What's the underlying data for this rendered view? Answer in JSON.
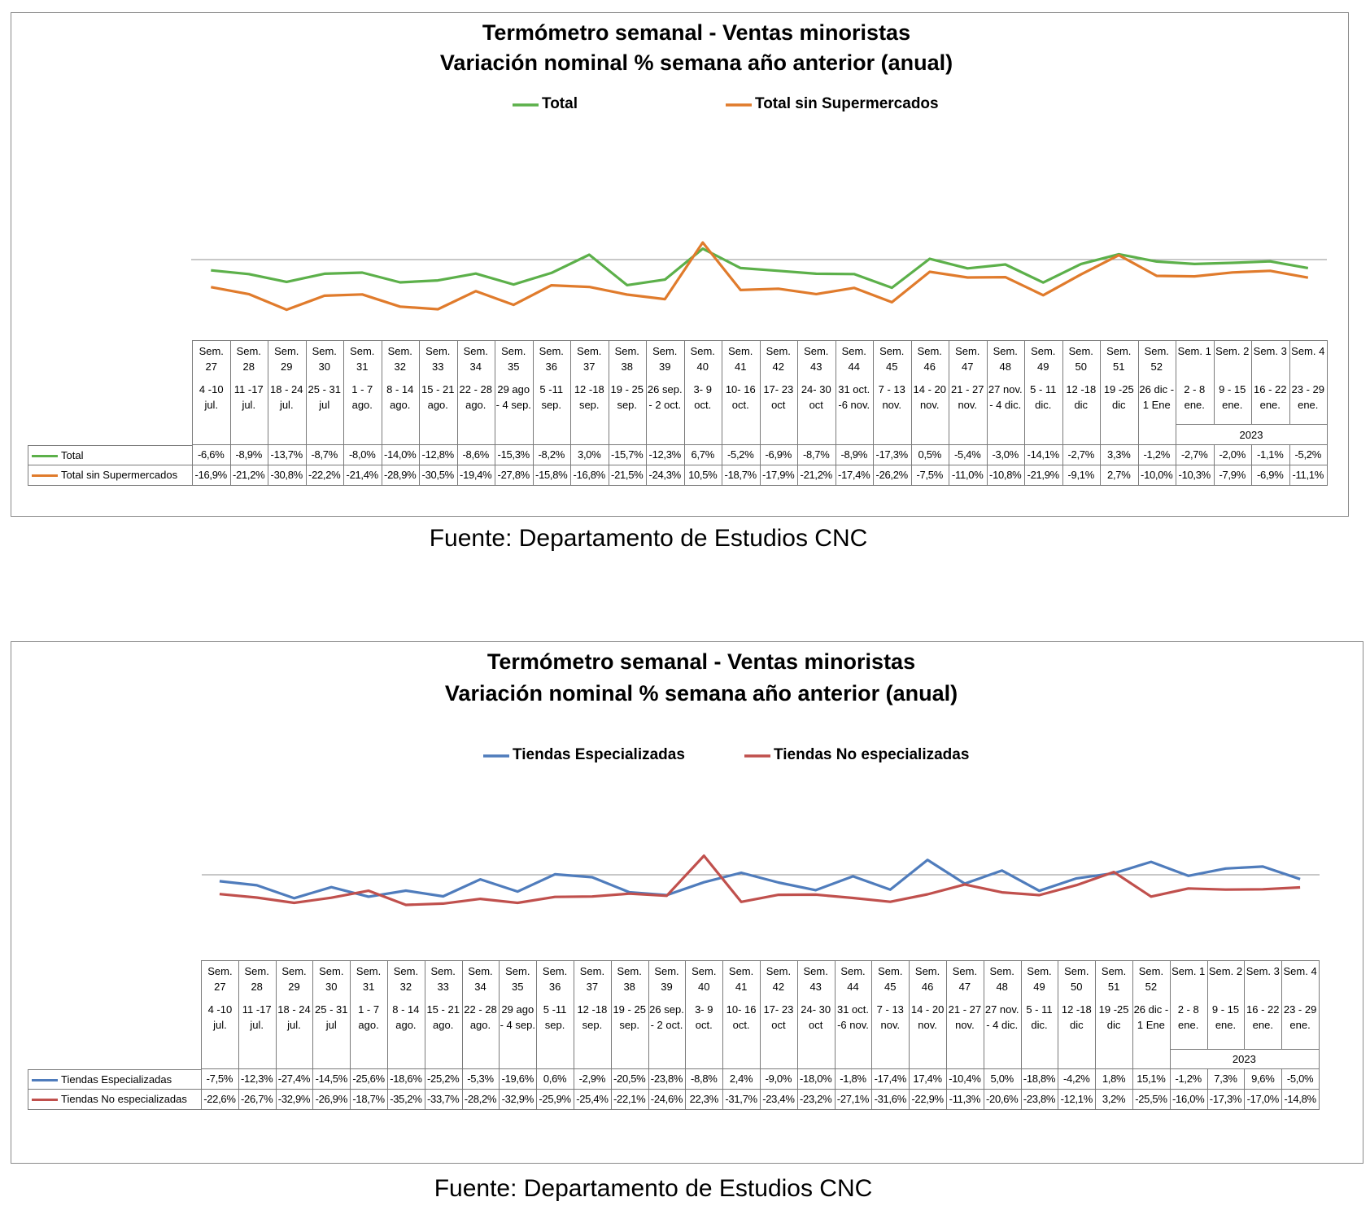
{
  "chart_data": [
    {
      "type": "line",
      "title": "Termómetro semanal - Ventas minoristas",
      "subtitle": "Variación nominal % semana año anterior (anual)",
      "categories": [
        "Sem. 27",
        "Sem. 28",
        "Sem. 29",
        "Sem. 30",
        "Sem. 31",
        "Sem. 32",
        "Sem. 33",
        "Sem. 34",
        "Sem. 35",
        "Sem. 36",
        "Sem. 37",
        "Sem. 38",
        "Sem. 39",
        "Sem. 40",
        "Sem. 41",
        "Sem. 42",
        "Sem. 43",
        "Sem. 44",
        "Sem. 45",
        "Sem. 46",
        "Sem. 47",
        "Sem. 48",
        "Sem. 49",
        "Sem. 50",
        "Sem. 51",
        "Sem. 52",
        "Sem. 1",
        "Sem. 2",
        "Sem. 3",
        "Sem. 4"
      ],
      "periods": [
        "4 -10 jul.",
        "11 -17 jul.",
        "18 - 24 jul.",
        "25 - 31 jul",
        "1 - 7 ago.",
        "8 - 14 ago.",
        "15 - 21 ago.",
        "22 - 28 ago.",
        "29 ago - 4 sep.",
        "5 -11 sep.",
        "12 -18 sep.",
        "19 - 25 sep.",
        "26 sep. - 2 oct.",
        "3- 9 oct.",
        "10- 16 oct.",
        "17- 23 oct",
        "24- 30 oct",
        "31 oct. -6 nov.",
        "7 - 13 nov.",
        "14 - 20 nov.",
        "21 - 27 nov.",
        "27 nov. - 4 dic.",
        "5 - 11 dic.",
        "12 -18 dic",
        "19 -25 dic",
        "26 dic - 1 Ene",
        "2 - 8 ene.",
        "9 - 15 ene.",
        "16 - 22 ene.",
        "23 - 29 ene."
      ],
      "year": "2023",
      "ylim": [
        -40,
        40
      ],
      "series": [
        {
          "name": "Total",
          "color": "#5cb04a",
          "values": [
            -6.6,
            -8.9,
            -13.7,
            -8.7,
            -8.0,
            -14.0,
            -12.8,
            -8.6,
            -15.3,
            -8.2,
            3.0,
            -15.7,
            -12.3,
            6.7,
            -5.2,
            -6.9,
            -8.7,
            -8.9,
            -17.3,
            0.5,
            -5.4,
            -3.0,
            -14.1,
            -2.7,
            3.3,
            -1.2,
            -2.7,
            -2.0,
            -1.1,
            -5.2
          ],
          "value_labels": [
            "-6,6%",
            "-8,9%",
            "-13,7%",
            "-8,7%",
            "-8,0%",
            "-14,0%",
            "-12,8%",
            "-8,6%",
            "-15,3%",
            "-8,2%",
            "3,0%",
            "-15,7%",
            "-12,3%",
            "6,7%",
            "-5,2%",
            "-6,9%",
            "-8,7%",
            "-8,9%",
            "-17,3%",
            "0,5%",
            "-5,4%",
            "-3,0%",
            "-14,1%",
            "-2,7%",
            "3,3%",
            "-1,2%",
            "-2,7%",
            "-2,0%",
            "-1,1%",
            "-5,2%"
          ]
        },
        {
          "name": "Total sin Supermercados",
          "color": "#e07b2c",
          "values": [
            -16.9,
            -21.2,
            -30.8,
            -22.2,
            -21.4,
            -28.9,
            -30.5,
            -19.4,
            -27.8,
            -15.8,
            -16.8,
            -21.5,
            -24.3,
            10.5,
            -18.7,
            -17.9,
            -21.2,
            -17.4,
            -26.2,
            -7.5,
            -11.0,
            -10.8,
            -21.9,
            -9.1,
            2.7,
            -10.0,
            -10.3,
            -7.9,
            -6.9,
            -11.1
          ],
          "value_labels": [
            "-16,9%",
            "-21,2%",
            "-30,8%",
            "-22,2%",
            "-21,4%",
            "-28,9%",
            "-30,5%",
            "-19,4%",
            "-27,8%",
            "-15,8%",
            "-16,8%",
            "-21,5%",
            "-24,3%",
            "10,5%",
            "-18,7%",
            "-17,9%",
            "-21,2%",
            "-17,4%",
            "-26,2%",
            "-7,5%",
            "-11,0%",
            "-10,8%",
            "-21,9%",
            "-9,1%",
            "2,7%",
            "-10,0%",
            "-10,3%",
            "-7,9%",
            "-6,9%",
            "-11,1%"
          ]
        }
      ],
      "source": "Fuente: Departamento de Estudios CNC"
    },
    {
      "type": "line",
      "title": "Termómetro semanal - Ventas minoristas",
      "subtitle": "Variación nominal % semana año anterior (anual)",
      "categories": [
        "Sem. 27",
        "Sem. 28",
        "Sem. 29",
        "Sem. 30",
        "Sem. 31",
        "Sem. 32",
        "Sem. 33",
        "Sem. 34",
        "Sem. 35",
        "Sem. 36",
        "Sem. 37",
        "Sem. 38",
        "Sem. 39",
        "Sem. 40",
        "Sem. 41",
        "Sem. 42",
        "Sem. 43",
        "Sem. 44",
        "Sem. 45",
        "Sem. 46",
        "Sem. 47",
        "Sem. 48",
        "Sem. 49",
        "Sem. 50",
        "Sem. 51",
        "Sem. 52",
        "Sem. 1",
        "Sem. 2",
        "Sem. 3",
        "Sem. 4"
      ],
      "periods": [
        "4 -10 jul.",
        "11 -17 jul.",
        "18 - 24 jul.",
        "25 - 31 jul",
        "1 - 7 ago.",
        "8 - 14 ago.",
        "15 - 21 ago.",
        "22 - 28 ago.",
        "29 ago - 4 sep.",
        "5 -11 sep.",
        "12 -18 sep.",
        "19 - 25 sep.",
        "26 sep. - 2 oct.",
        "3- 9 oct.",
        "10- 16 oct.",
        "17- 23 oct",
        "24- 30 oct",
        "31 oct. -6 nov.",
        "7 - 13 nov.",
        "14 - 20 nov.",
        "21 - 27 nov.",
        "27 nov. - 4 dic.",
        "5 - 11 dic.",
        "12 -18 dic",
        "19 -25 dic",
        "26 dic - 1 Ene",
        "2 - 8 ene.",
        "9 - 15 ene.",
        "16 - 22 ene.",
        "23 - 29 ene."
      ],
      "year": "2023",
      "ylim": [
        -40,
        40
      ],
      "series": [
        {
          "name": "Tiendas Especializadas",
          "color": "#4f7cbc",
          "values": [
            -7.5,
            -12.3,
            -27.4,
            -14.5,
            -25.6,
            -18.6,
            -25.2,
            -5.3,
            -19.6,
            0.6,
            -2.9,
            -20.5,
            -23.8,
            -8.8,
            2.4,
            -9.0,
            -18.0,
            -1.8,
            -17.4,
            17.4,
            -10.4,
            5.0,
            -18.8,
            -4.2,
            1.8,
            15.1,
            -1.2,
            7.3,
            9.6,
            -5.0
          ],
          "value_labels": [
            "-7,5%",
            "-12,3%",
            "-27,4%",
            "-14,5%",
            "-25,6%",
            "-18,6%",
            "-25,2%",
            "-5,3%",
            "-19,6%",
            "0,6%",
            "-2,9%",
            "-20,5%",
            "-23,8%",
            "-8,8%",
            "2,4%",
            "-9,0%",
            "-18,0%",
            "-1,8%",
            "-17,4%",
            "17,4%",
            "-10,4%",
            "5,0%",
            "-18,8%",
            "-4,2%",
            "1,8%",
            "15,1%",
            "-1,2%",
            "7,3%",
            "9,6%",
            "-5,0%"
          ]
        },
        {
          "name": "Tiendas No especializadas",
          "color": "#c0504d",
          "values": [
            -22.6,
            -26.7,
            -32.9,
            -26.9,
            -18.7,
            -35.2,
            -33.7,
            -28.2,
            -32.9,
            -25.9,
            -25.4,
            -22.1,
            -24.6,
            22.3,
            -31.7,
            -23.4,
            -23.2,
            -27.1,
            -31.6,
            -22.9,
            -11.3,
            -20.6,
            -23.8,
            -12.1,
            3.2,
            -25.5,
            -16.0,
            -17.3,
            -17.0,
            -14.8
          ],
          "value_labels": [
            "-22,6%",
            "-26,7%",
            "-32,9%",
            "-26,9%",
            "-18,7%",
            "-35,2%",
            "-33,7%",
            "-28,2%",
            "-32,9%",
            "-25,9%",
            "-25,4%",
            "-22,1%",
            "-24,6%",
            "22,3%",
            "-31,7%",
            "-23,4%",
            "-23,2%",
            "-27,1%",
            "-31,6%",
            "-22,9%",
            "-11,3%",
            "-20,6%",
            "-23,8%",
            "-12,1%",
            "3,2%",
            "-25,5%",
            "-16,0%",
            "-17,3%",
            "-17,0%",
            "-14,8%"
          ]
        }
      ],
      "source": "Fuente: Departamento de Estudios CNC"
    }
  ]
}
